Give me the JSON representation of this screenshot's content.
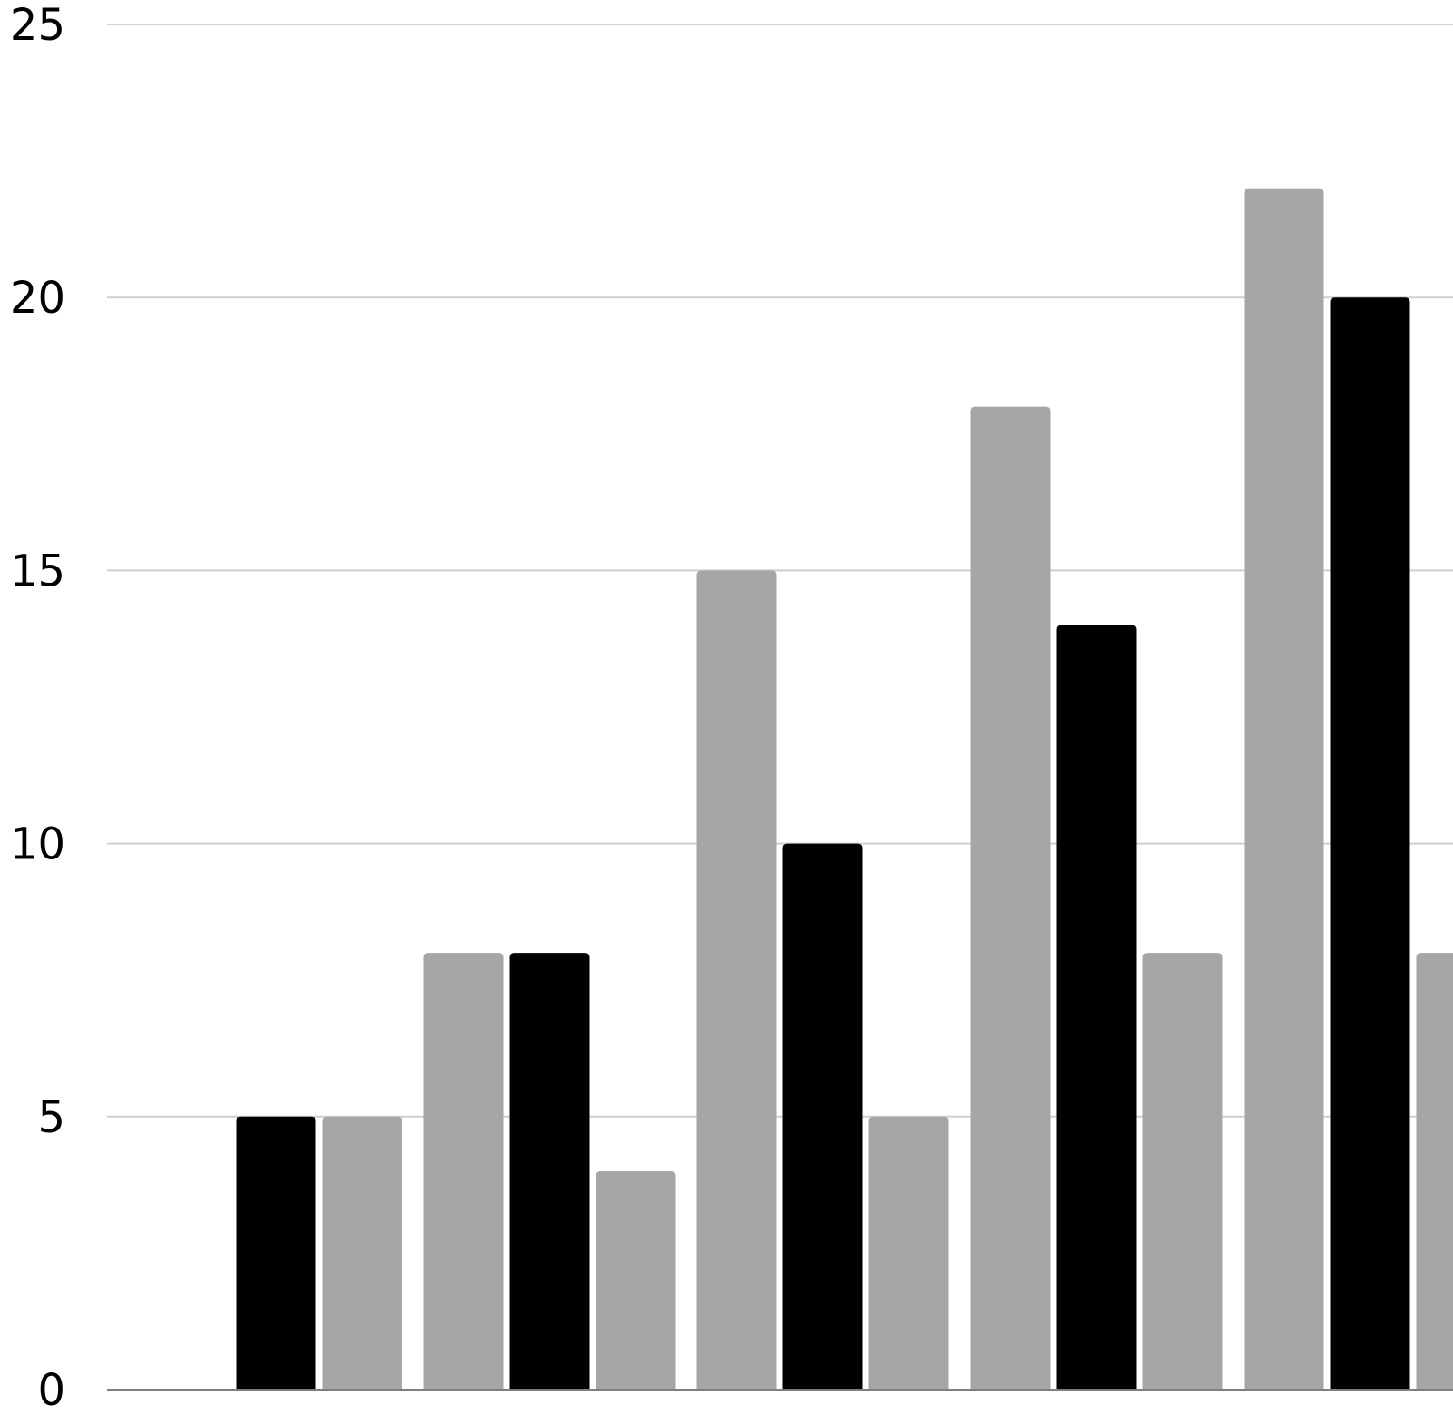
{
  "chart_data": {
    "type": "bar",
    "categories": [
      "",
      "",
      "",
      "",
      ""
    ],
    "series": [
      {
        "values": [
          null,
          8,
          15,
          18,
          22
        ],
        "color": "#a6a6a6"
      },
      {
        "values": [
          5,
          8,
          10,
          14,
          20
        ],
        "color": "#000000"
      },
      {
        "values": [
          5,
          4,
          5,
          8,
          8
        ],
        "color": "#a6a6a6"
      }
    ],
    "ylim": [
      0,
      25
    ],
    "yticks": [
      "0",
      "5",
      "10",
      "15",
      "20",
      "25"
    ],
    "grid": true,
    "gridline_color": "#cfcfcf",
    "axis_color": "#7f7f7f",
    "legend": "none"
  }
}
